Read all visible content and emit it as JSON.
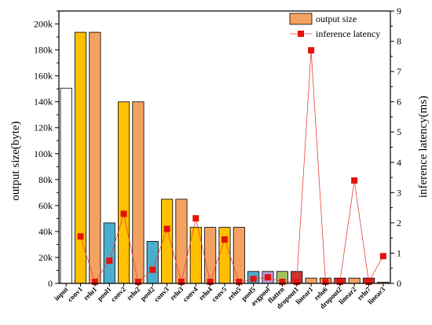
{
  "chart_data": {
    "type": "bar",
    "categories": [
      "input",
      "conv1",
      "relu1",
      "pool1",
      "conv2",
      "relu2",
      "pool2",
      "conv3",
      "relu3",
      "conv4",
      "relu4",
      "conv5",
      "relu5",
      "pool5",
      "avgpool",
      "flatten",
      "dropout1",
      "linear1",
      "relu6",
      "dropout2",
      "linear2",
      "relu7",
      "linear3"
    ],
    "series": [
      {
        "name": "output size",
        "axis": "left",
        "type": "bar",
        "values": [
          150528,
          193600,
          193600,
          46656,
          139968,
          139968,
          32448,
          64896,
          64896,
          43264,
          43264,
          43264,
          43264,
          9216,
          9216,
          9216,
          9216,
          4096,
          4096,
          4096,
          4096,
          4096,
          1000
        ],
        "colors": [
          "#ffffff",
          "#ffc000",
          "#f4a261",
          "#4aaecd",
          "#ffc000",
          "#f4a261",
          "#4aaecd",
          "#ffc000",
          "#f4a261",
          "#ffc000",
          "#f4a261",
          "#ffc000",
          "#f4a261",
          "#4aaecd",
          "#b89ad6",
          "#a3c35e",
          "#cc3333",
          "#f4a261",
          "#f4a261",
          "#cc3333",
          "#f4a261",
          "#cc3333",
          "#f4a261"
        ]
      },
      {
        "name": "inference latency",
        "axis": "right",
        "type": "line",
        "values": [
          null,
          1.55,
          0.05,
          0.75,
          2.3,
          0.05,
          0.45,
          1.8,
          0.05,
          2.15,
          0.05,
          1.45,
          0.05,
          0.15,
          0.2,
          0.05,
          0.05,
          7.7,
          0.05,
          0.05,
          3.4,
          0.05,
          0.9
        ]
      }
    ],
    "ylabel": "output size(byte)",
    "y2label": "inference latency(ms)",
    "ylim": [
      0,
      210000
    ],
    "y2lim": [
      0,
      9
    ],
    "yticks": [
      0,
      20000,
      40000,
      60000,
      80000,
      100000,
      120000,
      140000,
      160000,
      180000,
      200000
    ],
    "ytick_labels": [
      "0",
      "20k",
      "40k",
      "60k",
      "80k",
      "100k",
      "120k",
      "140k",
      "160k",
      "180k",
      "200k"
    ],
    "y2ticks": [
      0,
      1,
      2,
      3,
      4,
      5,
      6,
      7,
      8,
      9
    ],
    "legend": {
      "placement": "top-right",
      "entries": [
        "output size",
        "inference latency"
      ]
    },
    "colors": {
      "legend_bar": "#f4a261",
      "line": "#e8413c",
      "marker": "#e3130c"
    }
  }
}
